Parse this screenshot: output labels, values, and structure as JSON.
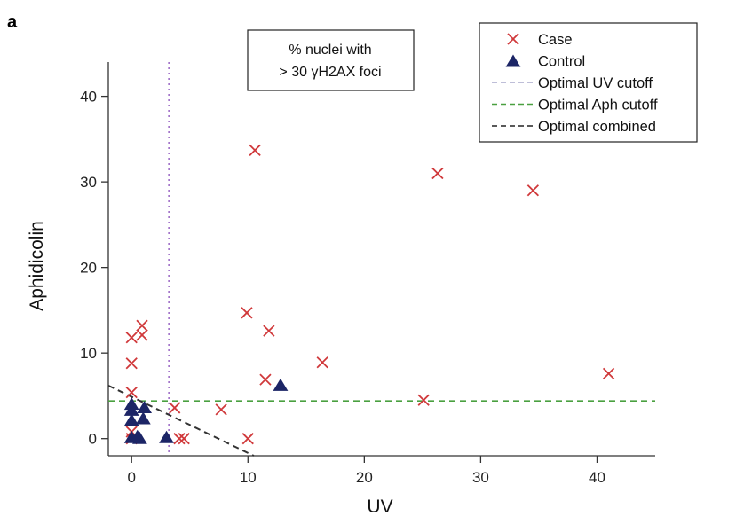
{
  "panel_label": "a",
  "chart_data": {
    "type": "scatter",
    "xlabel": "UV",
    "ylabel": "Aphidicolin",
    "xlim": [
      -2,
      45
    ],
    "ylim": [
      -2,
      44
    ],
    "xticks": [
      0,
      10,
      20,
      30,
      40
    ],
    "yticks": [
      0,
      10,
      20,
      30,
      40
    ],
    "annotation": [
      "% nuclei with",
      "> 30 γH2AX foci"
    ],
    "legend_position": "top-right",
    "series": [
      {
        "name": "Case",
        "marker": "x",
        "color": "#d0393b",
        "points": [
          [
            10.6,
            33.7
          ],
          [
            26.3,
            31
          ],
          [
            34.5,
            29
          ],
          [
            9.9,
            14.7
          ],
          [
            0.9,
            13.2
          ],
          [
            0,
            11.8
          ],
          [
            0.9,
            12.1
          ],
          [
            11.8,
            12.6
          ],
          [
            0,
            8.8
          ],
          [
            16.4,
            8.9
          ],
          [
            41,
            7.6
          ],
          [
            11.5,
            6.9
          ],
          [
            0,
            5.4
          ],
          [
            25.1,
            4.5
          ],
          [
            3.7,
            3.6
          ],
          [
            7.7,
            3.4
          ],
          [
            0,
            0.8
          ],
          [
            0,
            0
          ],
          [
            4.1,
            0
          ],
          [
            4.5,
            0
          ],
          [
            10,
            0
          ]
        ]
      },
      {
        "name": "Control",
        "marker": "triangle",
        "color": "#1c2566",
        "points": [
          [
            12.8,
            6.2
          ],
          [
            0,
            4
          ],
          [
            0,
            3.3
          ],
          [
            1.1,
            3.6
          ],
          [
            0,
            2.1
          ],
          [
            1,
            2.3
          ],
          [
            0,
            0.1
          ],
          [
            0.5,
            0.2
          ],
          [
            0.7,
            0
          ],
          [
            3,
            0.1
          ]
        ]
      }
    ],
    "reference_lines": [
      {
        "name": "Optimal UV cutoff",
        "kind": "vertical",
        "x": 3.2,
        "color": "#a070c8",
        "dash": "dotted"
      },
      {
        "name": "Optimal Aph cutoff",
        "kind": "horizontal",
        "y": 4.4,
        "color": "#4aa040",
        "dash": "dashed"
      },
      {
        "name": "Optimal combined",
        "kind": "segment",
        "from": [
          -2,
          6.2
        ],
        "to": [
          10.5,
          -2
        ],
        "color": "#333333",
        "dash": "dashed"
      }
    ],
    "legend": [
      {
        "label": "Case",
        "symbol": "x",
        "color": "#d0393b"
      },
      {
        "label": "Control",
        "symbol": "triangle",
        "color": "#1c2566"
      },
      {
        "label": "Optimal UV cutoff",
        "symbol": "line",
        "color": "#a8a8cc",
        "dash": "dashed"
      },
      {
        "label": "Optimal Aph cutoff",
        "symbol": "line",
        "color": "#4aa040",
        "dash": "dashed"
      },
      {
        "label": "Optimal combined",
        "symbol": "line",
        "color": "#222222",
        "dash": "dashed"
      }
    ]
  }
}
